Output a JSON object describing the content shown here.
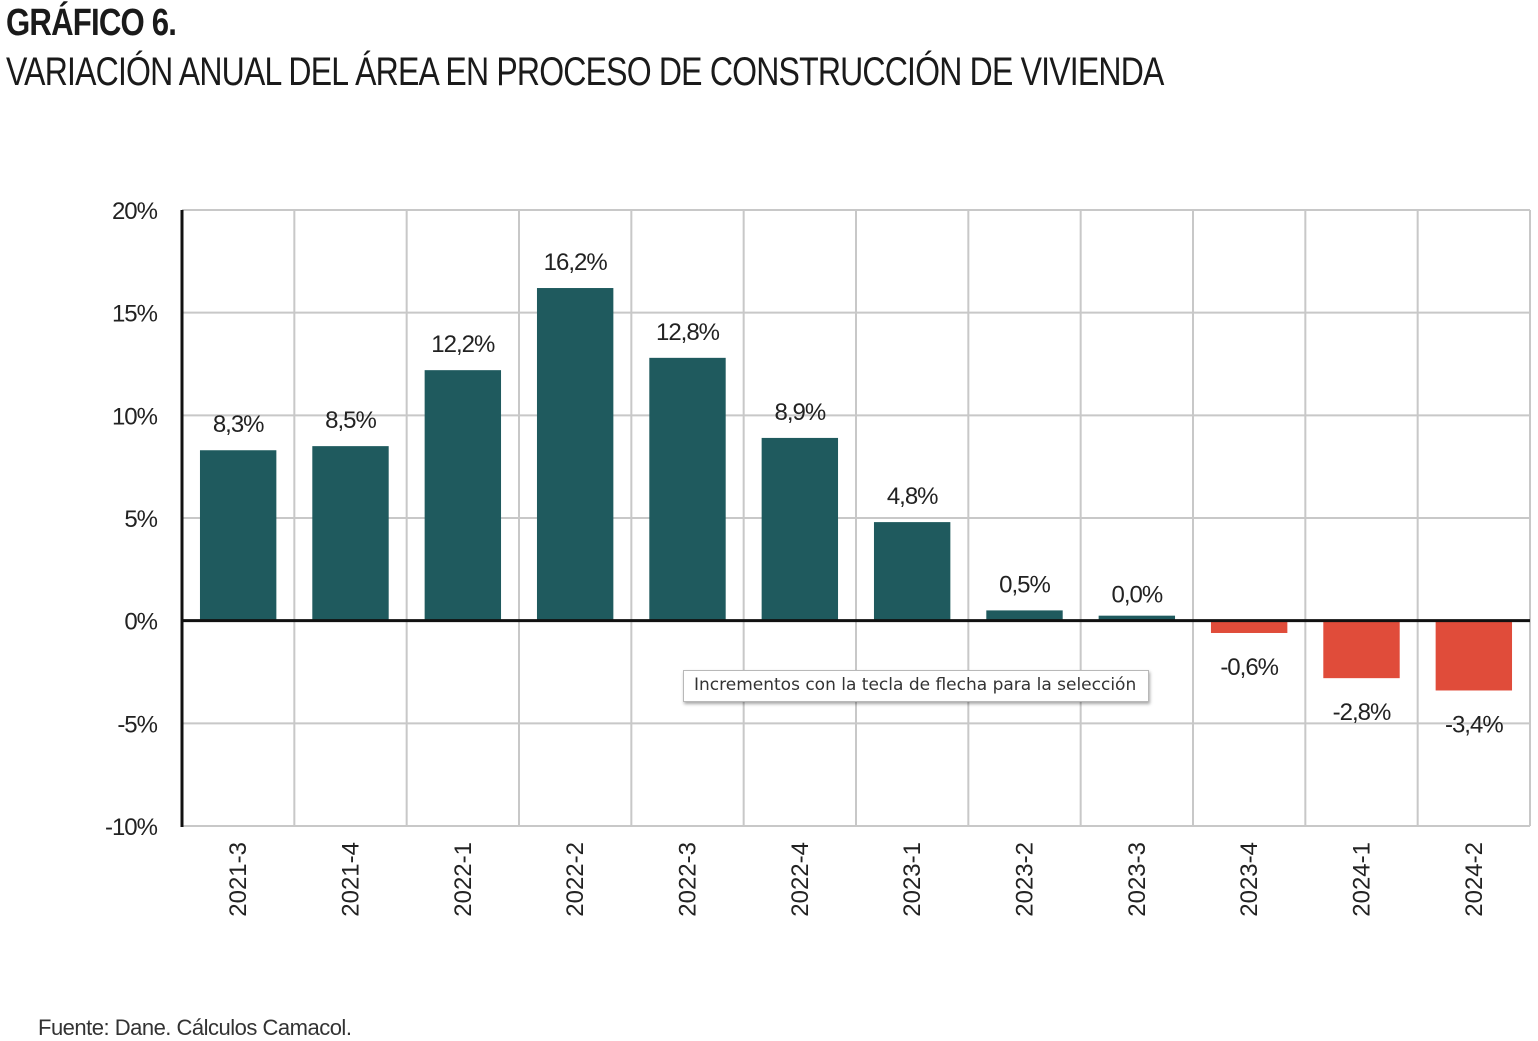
{
  "header": {
    "title": "GRÁFICO 6.",
    "subtitle": "VARIACIÓN ANUAL DEL ÁREA EN PROCESO DE CONSTRUCCIÓN DE VIVIENDA"
  },
  "chart_data": {
    "type": "bar",
    "title": "GRÁFICO 6.",
    "subtitle": "VARIACIÓN ANUAL DEL ÁREA EN PROCESO DE CONSTRUCCIÓN DE VIVIENDA",
    "xlabel": "",
    "ylabel": "",
    "categories": [
      "2021-3",
      "2021-4",
      "2022-1",
      "2022-2",
      "2022-3",
      "2022-4",
      "2023-1",
      "2023-2",
      "2023-3",
      "2023-4",
      "2024-1",
      "2024-2"
    ],
    "values": [
      8.3,
      8.5,
      12.2,
      16.2,
      12.8,
      8.9,
      4.8,
      0.5,
      0.0,
      -0.6,
      -2.8,
      -3.4
    ],
    "value_labels": [
      "8,3%",
      "8,5%",
      "12,2%",
      "16,2%",
      "12,8%",
      "8,9%",
      "4,8%",
      "0,5%",
      "0,0%",
      "-0,6%",
      "-2,8%",
      "-3,4%"
    ],
    "ylim": [
      -10,
      20
    ],
    "yticks": [
      20,
      15,
      10,
      5,
      0,
      -5,
      -10
    ],
    "ytick_labels": [
      "20%",
      "15%",
      "10%",
      "5%",
      "0%",
      "-5%",
      "-10%"
    ],
    "grid": true,
    "colors": {
      "positive": "#1f5a5e",
      "negative": "#e04c3a",
      "grid": "#c8c8c8",
      "axis": "#111111"
    }
  },
  "tooltip": {
    "text": "Incrementos con la tecla de flecha para la selección"
  },
  "footer": {
    "source": "Fuente: Dane. Cálculos Camacol."
  }
}
